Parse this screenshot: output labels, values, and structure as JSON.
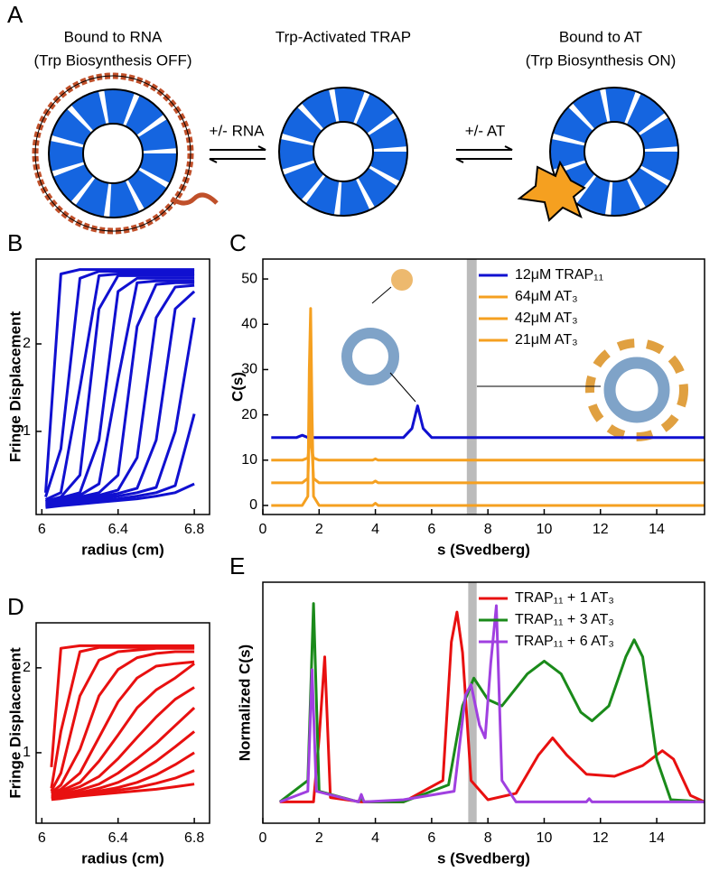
{
  "diagram": {
    "panel": "A",
    "left_title": "Bound to RNA",
    "left_subtitle": "(Trp Biosynthesis OFF)",
    "center_title": "Trp-Activated TRAP",
    "right_title": "Bound to AT",
    "right_subtitle": "(Trp Biosynthesis ON)",
    "left_arrow": "+/- RNA",
    "right_arrow": "+/- AT"
  },
  "chart_data": [
    {
      "type": "line",
      "panel": "B",
      "ylabel": "Fringe Displacement",
      "xlabel": "radius (cm)",
      "xlim": [
        5.97,
        6.88
      ],
      "ylim": [
        0.05,
        2.97
      ],
      "xticks": [
        6,
        6.4,
        6.8
      ],
      "yticks": [
        1,
        2
      ],
      "x": [
        6.02,
        6.1,
        6.2,
        6.3,
        6.4,
        6.5,
        6.6,
        6.7,
        6.8
      ],
      "color": "#1010d0",
      "series": [
        {
          "values": [
            0.3,
            2.8,
            2.85,
            2.85,
            2.85,
            2.85,
            2.85,
            2.85,
            2.85
          ]
        },
        {
          "values": [
            0.25,
            0.8,
            2.75,
            2.83,
            2.83,
            2.83,
            2.83,
            2.83,
            2.83
          ]
        },
        {
          "values": [
            0.22,
            0.3,
            1.5,
            2.78,
            2.8,
            2.8,
            2.8,
            2.8,
            2.8
          ]
        },
        {
          "values": [
            0.2,
            0.25,
            0.5,
            2.4,
            2.78,
            2.78,
            2.78,
            2.78,
            2.78
          ]
        },
        {
          "values": [
            0.2,
            0.24,
            0.3,
            0.9,
            2.6,
            2.75,
            2.75,
            2.75,
            2.75
          ]
        },
        {
          "values": [
            0.19,
            0.22,
            0.27,
            0.4,
            1.6,
            2.7,
            2.72,
            2.72,
            2.72
          ]
        },
        {
          "values": [
            0.18,
            0.21,
            0.25,
            0.3,
            0.5,
            2.2,
            2.68,
            2.7,
            2.7
          ]
        },
        {
          "values": [
            0.17,
            0.2,
            0.23,
            0.27,
            0.33,
            0.7,
            2.3,
            2.65,
            2.67
          ]
        },
        {
          "values": [
            0.16,
            0.19,
            0.22,
            0.25,
            0.29,
            0.35,
            0.9,
            2.4,
            2.6
          ]
        },
        {
          "values": [
            0.15,
            0.18,
            0.2,
            0.23,
            0.26,
            0.3,
            0.36,
            1.0,
            2.3
          ]
        },
        {
          "values": [
            0.14,
            0.17,
            0.19,
            0.21,
            0.23,
            0.26,
            0.3,
            0.38,
            1.2
          ]
        },
        {
          "values": [
            0.13,
            0.15,
            0.17,
            0.19,
            0.21,
            0.23,
            0.26,
            0.3,
            0.4
          ]
        }
      ]
    },
    {
      "type": "line",
      "panel": "C",
      "ylabel": "C(s)",
      "xlabel": "s (Svedberg)",
      "xlim": [
        0,
        15.7
      ],
      "ylim": [
        -2,
        54.4
      ],
      "xticks": [
        0,
        2,
        4,
        6,
        8,
        10,
        12,
        14
      ],
      "yticks": [
        0,
        10,
        20,
        30,
        40,
        50
      ],
      "band": [
        7.25,
        7.6
      ],
      "band_color": "#bbbbbb",
      "legend": "upper right",
      "series": [
        {
          "name": "12μM TRAP₁₁",
          "color": "#1010d0",
          "x": [
            0.3,
            1.2,
            1.4,
            1.6,
            1.65,
            1.7,
            1.75,
            1.8,
            2.0,
            3.9,
            4.0,
            4.1,
            5.0,
            5.3,
            5.5,
            5.7,
            6.0,
            8,
            15.7
          ],
          "values": [
            15,
            15,
            15.5,
            15,
            15,
            15,
            15,
            15,
            15,
            15,
            15,
            15,
            15,
            17,
            22,
            17,
            15,
            15,
            15
          ]
        },
        {
          "name": "64μM AT₃",
          "color": "#f5a020",
          "x": [
            0.3,
            1.2,
            1.4,
            1.6,
            1.65,
            1.7,
            1.75,
            1.8,
            2.0,
            3.9,
            4.0,
            4.1,
            5.0,
            15.7
          ],
          "values": [
            0,
            0,
            0,
            2,
            30,
            43.5,
            20,
            2,
            0,
            0,
            0.5,
            0,
            0,
            0
          ]
        },
        {
          "name": "42μM AT₃",
          "color": "#f5a020",
          "x": [
            0.3,
            1.2,
            1.4,
            1.6,
            1.65,
            1.7,
            1.75,
            1.8,
            2.0,
            3.9,
            4.0,
            4.1,
            5.0,
            15.7
          ],
          "values": [
            5,
            5,
            5,
            6,
            15,
            25,
            12,
            6,
            5,
            5,
            5.4,
            5,
            5,
            5
          ]
        },
        {
          "name": "21μM AT₃",
          "color": "#f5a020",
          "x": [
            0.3,
            1.2,
            1.4,
            1.6,
            1.65,
            1.7,
            1.75,
            1.8,
            2.0,
            3.9,
            4.0,
            4.1,
            5.0,
            15.7
          ],
          "values": [
            10,
            10,
            10,
            10.5,
            13,
            17,
            12,
            10.5,
            10,
            10,
            10.3,
            10,
            10,
            10
          ]
        }
      ]
    },
    {
      "type": "line",
      "panel": "D",
      "ylabel": "Fringe Displacement",
      "xlabel": "radius (cm)",
      "xlim": [
        5.97,
        6.88
      ],
      "ylim": [
        0.17,
        2.53
      ],
      "xticks": [
        6,
        6.4,
        6.8
      ],
      "yticks": [
        1,
        2
      ],
      "x": [
        6.05,
        6.1,
        6.2,
        6.3,
        6.4,
        6.5,
        6.6,
        6.7,
        6.8
      ],
      "color": "#e81010",
      "series": [
        {
          "values": [
            0.83,
            2.23,
            2.26,
            2.26,
            2.26,
            2.26,
            2.26,
            2.26,
            2.26
          ]
        },
        {
          "values": [
            0.58,
            1.25,
            2.19,
            2.24,
            2.24,
            2.24,
            2.24,
            2.24,
            2.24
          ]
        },
        {
          "values": [
            0.55,
            0.76,
            1.67,
            2.09,
            2.19,
            2.21,
            2.23,
            2.23,
            2.23
          ]
        },
        {
          "values": [
            0.53,
            0.62,
            1.04,
            1.67,
            1.98,
            2.12,
            2.17,
            2.19,
            2.19
          ]
        },
        {
          "values": [
            0.52,
            0.57,
            0.76,
            1.18,
            1.6,
            1.88,
            2.02,
            2.05,
            2.07
          ]
        },
        {
          "values": [
            0.51,
            0.55,
            0.65,
            0.9,
            1.21,
            1.53,
            1.74,
            1.88,
            2.05
          ]
        },
        {
          "values": [
            0.49,
            0.53,
            0.6,
            0.72,
            0.93,
            1.18,
            1.42,
            1.63,
            1.77
          ]
        },
        {
          "values": [
            0.48,
            0.51,
            0.56,
            0.63,
            0.76,
            0.93,
            1.11,
            1.32,
            1.53
          ]
        },
        {
          "values": [
            0.47,
            0.5,
            0.53,
            0.58,
            0.65,
            0.76,
            0.9,
            1.07,
            1.25
          ]
        },
        {
          "values": [
            0.46,
            0.49,
            0.51,
            0.55,
            0.59,
            0.65,
            0.74,
            0.86,
            1.0
          ]
        },
        {
          "values": [
            0.46,
            0.48,
            0.5,
            0.53,
            0.56,
            0.59,
            0.64,
            0.7,
            0.79
          ]
        },
        {
          "values": [
            0.45,
            0.46,
            0.49,
            0.51,
            0.53,
            0.55,
            0.57,
            0.6,
            0.63
          ]
        }
      ]
    },
    {
      "type": "line",
      "panel": "E",
      "ylabel": "Normalized C(s)",
      "xlabel": "s (Svedberg)",
      "xlim": [
        0,
        15.7
      ],
      "ylim": [
        -0.1,
        1.03
      ],
      "xticks": [
        0,
        2,
        4,
        6,
        8,
        10,
        12,
        14
      ],
      "band": [
        7.3,
        7.6
      ],
      "band_color": "#bbbbbb",
      "legend": "upper right",
      "series": [
        {
          "name": "TRAP₁₁ + 1 AT₃",
          "color": "#e81010",
          "x": [
            0.6,
            1.8,
            2.0,
            2.2,
            2.4,
            3.5,
            5,
            6.4,
            6.7,
            6.9,
            7.1,
            7.4,
            8,
            9,
            9.8,
            10.3,
            10.8,
            11.5,
            12.5,
            13.5,
            14.2,
            14.6,
            15.2,
            15.7
          ],
          "values": [
            0,
            0,
            0.3,
            0.68,
            0.02,
            0,
            0,
            0.1,
            0.75,
            0.89,
            0.7,
            0.1,
            0.01,
            0.04,
            0.22,
            0.3,
            0.22,
            0.13,
            0.12,
            0.17,
            0.24,
            0.2,
            0.03,
            0
          ]
        },
        {
          "name": "TRAP₁₁ + 3 AT₃",
          "color": "#1a8a1a",
          "x": [
            0.6,
            1.6,
            1.8,
            2.0,
            3.4,
            3.5,
            3.6,
            5,
            6.6,
            7.1,
            7.5,
            8,
            8.5,
            9.4,
            10,
            10.6,
            11.3,
            11.7,
            12.3,
            12.9,
            13.2,
            13.5,
            14,
            14.5,
            15.7
          ],
          "values": [
            0,
            0.1,
            0.93,
            0.05,
            0,
            0.02,
            0,
            0,
            0.08,
            0.45,
            0.58,
            0.48,
            0.45,
            0.6,
            0.66,
            0.6,
            0.42,
            0.38,
            0.45,
            0.68,
            0.76,
            0.68,
            0.2,
            0.01,
            0
          ]
        },
        {
          "name": "TRAP₁₁ + 6 AT₃",
          "color": "#a040e0",
          "x": [
            0.6,
            1.6,
            1.75,
            1.9,
            3.4,
            3.5,
            3.6,
            5,
            6.8,
            7.2,
            7.4,
            7.7,
            7.9,
            8.1,
            8.3,
            8.5,
            9,
            11.5,
            11.6,
            11.7,
            15.7
          ],
          "values": [
            0,
            0.05,
            0.62,
            0.05,
            0,
            0.035,
            0,
            0.01,
            0.05,
            0.5,
            0.55,
            0.36,
            0.3,
            0.65,
            0.92,
            0.1,
            0,
            0,
            0.015,
            0,
            0
          ]
        }
      ]
    }
  ]
}
